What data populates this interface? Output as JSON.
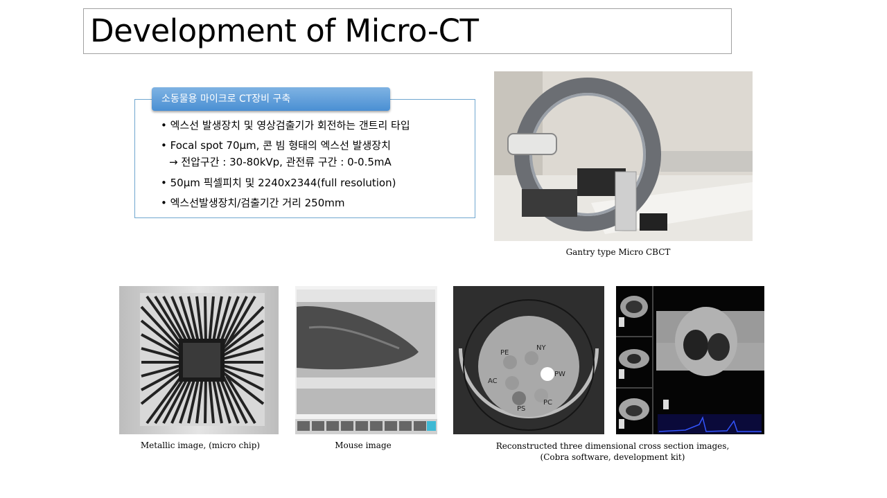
{
  "title": "Development of Micro-CT",
  "spec": {
    "header": "소동물용 마이크로 CT장비 구축",
    "bullets": [
      "• 엑스선 발생장치 및 영상검출기가 회전하는 갠트리 타입",
      "• Focal spot 70μm, 콘 빔 형태의 엑스선 발생장치",
      "→ 전압구간 : 30-80kVp, 관전류 구간 : 0-0.5mA",
      "•  50μm 픽셀피치 및 2240x2344(full resolution)",
      "•  엑스선발생장치/검출기간 거리 250mm"
    ]
  },
  "gantry": {
    "caption": "Gantry type Micro CBCT"
  },
  "phantom": {
    "labels": [
      "PE",
      "NY",
      "AC",
      "PW",
      "PS",
      "PC"
    ]
  },
  "captions": {
    "chip": "Metallic image, (micro chip)",
    "mouse": "Mouse image",
    "recon_line1": "Reconstructed three dimensional cross section images,",
    "recon_line2": "(Cobra software, development kit)"
  }
}
